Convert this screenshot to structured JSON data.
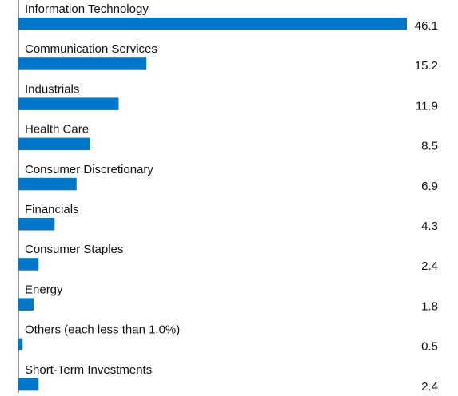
{
  "chart_data": {
    "type": "hbar",
    "categories": [
      "Information Technology",
      "Communication Services",
      "Industrials",
      "Health Care",
      "Consumer Discretionary",
      "Financials",
      "Consumer Staples",
      "Energy",
      "Others (each less than 1.0%)",
      "Short-Term Investments"
    ],
    "values": [
      46.1,
      15.2,
      11.9,
      8.5,
      6.9,
      4.3,
      2.4,
      1.8,
      0.5,
      2.4
    ],
    "color": "#0077c8"
  }
}
